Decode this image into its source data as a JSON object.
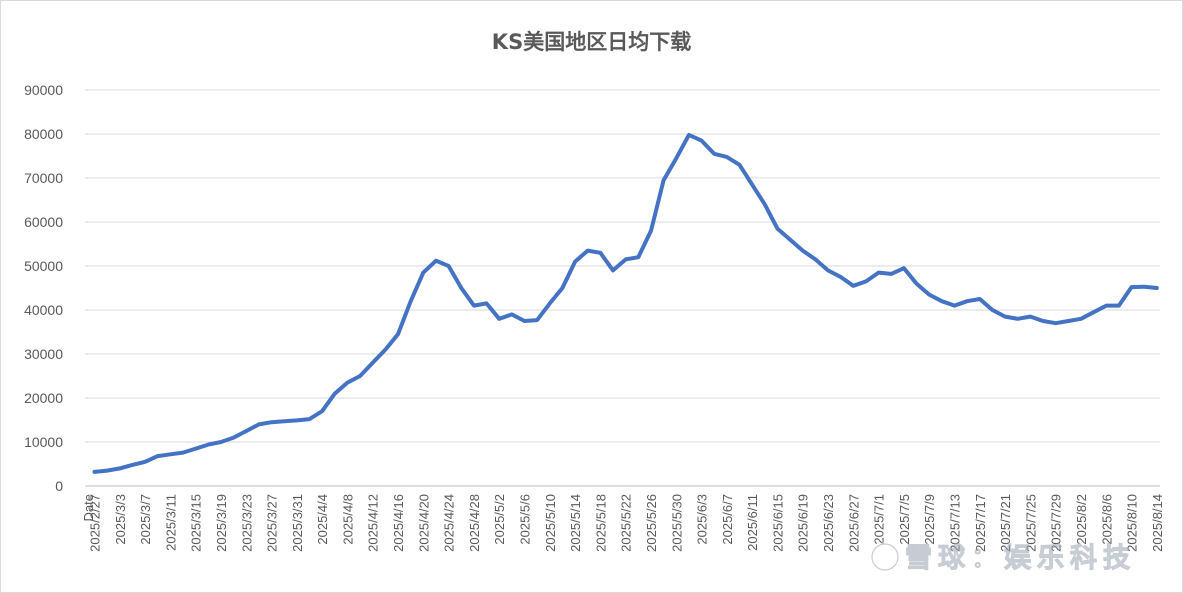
{
  "chart_data": {
    "type": "line",
    "title": "KS美国地区日均下载",
    "xlabel": "",
    "ylabel": "",
    "ylim": [
      0,
      90000
    ],
    "yticks": [
      "0",
      "10000",
      "20000",
      "30000",
      "40000",
      "50000",
      "60000",
      "70000",
      "80000",
      "90000"
    ],
    "grid": true,
    "legend": "none",
    "x_tick_labels": [
      "Date",
      "2025/2/27",
      "2025/3/3",
      "2025/3/7",
      "2025/3/11",
      "2025/3/15",
      "2025/3/19",
      "2025/3/23",
      "2025/3/27",
      "2025/3/31",
      "2025/4/4",
      "2025/4/8",
      "2025/4/12",
      "2025/4/16",
      "2025/4/20",
      "2025/4/24",
      "2025/4/28",
      "2025/5/2",
      "2025/5/6",
      "2025/5/10",
      "2025/5/14",
      "2025/5/18",
      "2025/5/22",
      "2025/5/26",
      "2025/5/30",
      "2025/6/3",
      "2025/6/7",
      "2025/6/11",
      "2025/6/15",
      "2025/6/19",
      "2025/6/23",
      "2025/6/27",
      "2025/7/1",
      "2025/7/5",
      "2025/7/9",
      "2025/7/13",
      "2025/7/17",
      "2025/7/21",
      "2025/7/25",
      "2025/7/29",
      "2025/8/2",
      "2025/8/6",
      "2025/8/10",
      "2025/8/14"
    ],
    "line_color": "#4472C4",
    "series": [
      {
        "x": [
          "2025/2/27",
          "2025/3/1",
          "2025/3/3",
          "2025/3/5",
          "2025/3/7",
          "2025/3/9",
          "2025/3/11",
          "2025/3/13",
          "2025/3/15",
          "2025/3/17",
          "2025/3/19",
          "2025/3/21",
          "2025/3/23",
          "2025/3/25",
          "2025/3/27",
          "2025/3/29",
          "2025/3/31",
          "2025/4/2",
          "2025/4/4",
          "2025/4/6",
          "2025/4/8",
          "2025/4/10",
          "2025/4/12",
          "2025/4/14",
          "2025/4/16",
          "2025/4/18",
          "2025/4/20",
          "2025/4/22",
          "2025/4/24",
          "2025/4/26",
          "2025/4/28",
          "2025/4/30",
          "2025/5/2",
          "2025/5/4",
          "2025/5/6",
          "2025/5/8",
          "2025/5/10",
          "2025/5/12",
          "2025/5/14",
          "2025/5/16",
          "2025/5/18",
          "2025/5/20",
          "2025/5/22",
          "2025/5/24",
          "2025/5/26",
          "2025/5/28",
          "2025/5/30",
          "2025/6/1",
          "2025/6/3",
          "2025/6/5",
          "2025/6/7",
          "2025/6/9",
          "2025/6/11",
          "2025/6/13",
          "2025/6/15",
          "2025/6/17",
          "2025/6/19",
          "2025/6/21",
          "2025/6/23",
          "2025/6/25",
          "2025/6/27",
          "2025/6/29",
          "2025/7/1",
          "2025/7/3",
          "2025/7/5",
          "2025/7/7",
          "2025/7/9",
          "2025/7/11",
          "2025/7/13",
          "2025/7/15",
          "2025/7/17",
          "2025/7/19",
          "2025/7/21",
          "2025/7/23",
          "2025/7/25",
          "2025/7/27",
          "2025/7/29",
          "2025/7/31",
          "2025/8/2",
          "2025/8/4",
          "2025/8/6",
          "2025/8/8",
          "2025/8/10",
          "2025/8/12",
          "2025/8/14"
        ],
        "values": [
          3200,
          3500,
          4000,
          4800,
          5500,
          6800,
          7200,
          7600,
          8500,
          9400,
          10000,
          11000,
          12500,
          14000,
          14500,
          14700,
          14900,
          15200,
          17000,
          21000,
          23500,
          25000,
          28000,
          31000,
          34500,
          42000,
          48500,
          51200,
          50000,
          45000,
          41000,
          41500,
          38000,
          39000,
          37500,
          37700,
          41500,
          45000,
          51000,
          53500,
          53000,
          49000,
          51500,
          52000,
          58000,
          69500,
          74500,
          79800,
          78500,
          75500,
          74800,
          73000,
          68500,
          64000,
          58500,
          56000,
          53500,
          51500,
          49000,
          47500,
          45500,
          46500,
          48500,
          48200,
          49500,
          46000,
          43500,
          42000,
          41000,
          42000,
          42500,
          40000,
          38500,
          38000,
          38500,
          37500,
          37000,
          37500,
          38000,
          39500,
          41000,
          41000,
          45200,
          45300,
          45000
        ]
      }
    ]
  },
  "watermark": "雪球：娱乐科技"
}
